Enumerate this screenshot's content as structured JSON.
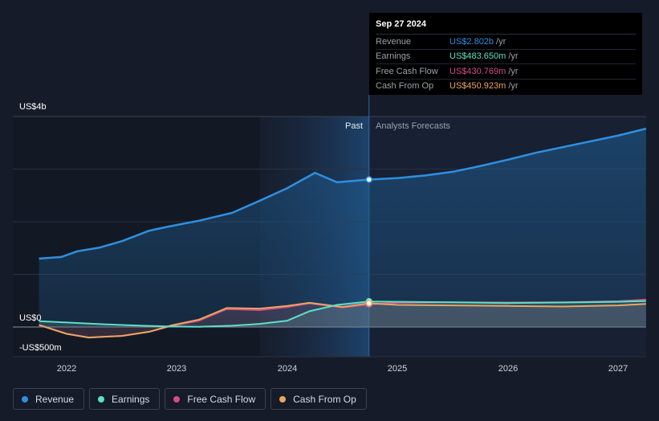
{
  "chart_data": {
    "type": "line",
    "title": "",
    "xlabel": "",
    "ylabel": "",
    "ylim": [
      -500,
      4000
    ],
    "y_ticks": [
      {
        "value": 4000,
        "label": "US$4b"
      },
      {
        "value": 0,
        "label": "US$0"
      },
      {
        "value": -500,
        "label": "-US$500m"
      }
    ],
    "x_ticks": [
      {
        "value": 2022,
        "label": "2022"
      },
      {
        "value": 2023,
        "label": "2023"
      },
      {
        "value": 2024,
        "label": "2024"
      },
      {
        "value": 2025,
        "label": "2025"
      },
      {
        "value": 2026,
        "label": "2026"
      },
      {
        "value": 2027,
        "label": "2027"
      }
    ],
    "xlim": [
      2021.55,
      2027.25
    ],
    "past_start": 2023.75,
    "divider": 2024.74,
    "past_label": "Past",
    "forecast_label": "Analysts Forecasts",
    "series": [
      {
        "name": "Revenue",
        "color": "#2f8fe0",
        "points": [
          [
            2021.75,
            1300
          ],
          [
            2021.95,
            1330
          ],
          [
            2022.1,
            1440
          ],
          [
            2022.3,
            1510
          ],
          [
            2022.5,
            1630
          ],
          [
            2022.75,
            1830
          ],
          [
            2022.9,
            1900
          ],
          [
            2023.2,
            2020
          ],
          [
            2023.5,
            2170
          ],
          [
            2023.75,
            2400
          ],
          [
            2024.0,
            2640
          ],
          [
            2024.25,
            2930
          ],
          [
            2024.45,
            2750
          ],
          [
            2024.74,
            2802
          ],
          [
            2025.0,
            2830
          ],
          [
            2025.25,
            2880
          ],
          [
            2025.5,
            2950
          ],
          [
            2025.75,
            3060
          ],
          [
            2026.0,
            3180
          ],
          [
            2026.25,
            3310
          ],
          [
            2026.5,
            3420
          ],
          [
            2026.75,
            3530
          ],
          [
            2027.0,
            3640
          ],
          [
            2027.25,
            3770
          ]
        ]
      },
      {
        "name": "Earnings",
        "color": "#5ce0c6",
        "points": [
          [
            2021.75,
            110
          ],
          [
            2022.0,
            85
          ],
          [
            2022.3,
            55
          ],
          [
            2022.6,
            30
          ],
          [
            2022.9,
            10
          ],
          [
            2023.2,
            5
          ],
          [
            2023.5,
            25
          ],
          [
            2023.75,
            60
          ],
          [
            2024.0,
            120
          ],
          [
            2024.2,
            300
          ],
          [
            2024.45,
            420
          ],
          [
            2024.74,
            484
          ],
          [
            2025.0,
            480
          ],
          [
            2025.5,
            470
          ],
          [
            2026.0,
            455
          ],
          [
            2026.5,
            465
          ],
          [
            2027.0,
            480
          ],
          [
            2027.25,
            495
          ]
        ]
      },
      {
        "name": "Free Cash Flow",
        "color": "#d14d89",
        "points": [
          [
            2021.75,
            40
          ],
          [
            2022.0,
            -130
          ],
          [
            2022.2,
            -200
          ],
          [
            2022.5,
            -170
          ],
          [
            2022.75,
            -90
          ],
          [
            2022.95,
            20
          ],
          [
            2023.2,
            120
          ],
          [
            2023.45,
            340
          ],
          [
            2023.75,
            320
          ],
          [
            2024.0,
            380
          ],
          [
            2024.2,
            450
          ],
          [
            2024.5,
            370
          ],
          [
            2024.74,
            431
          ],
          [
            2025.0,
            460
          ],
          [
            2025.5,
            470
          ],
          [
            2026.0,
            465
          ],
          [
            2026.5,
            470
          ],
          [
            2027.0,
            490
          ],
          [
            2027.25,
            520
          ]
        ]
      },
      {
        "name": "Cash From Op",
        "color": "#e8a562",
        "points": [
          [
            2021.75,
            40
          ],
          [
            2022.0,
            -130
          ],
          [
            2022.2,
            -200
          ],
          [
            2022.5,
            -170
          ],
          [
            2022.75,
            -90
          ],
          [
            2022.95,
            30
          ],
          [
            2023.2,
            140
          ],
          [
            2023.45,
            360
          ],
          [
            2023.75,
            350
          ],
          [
            2024.0,
            400
          ],
          [
            2024.2,
            460
          ],
          [
            2024.5,
            380
          ],
          [
            2024.74,
            451
          ],
          [
            2025.0,
            420
          ],
          [
            2025.5,
            410
          ],
          [
            2026.0,
            400
          ],
          [
            2026.5,
            390
          ],
          [
            2027.0,
            410
          ],
          [
            2027.25,
            440
          ]
        ]
      }
    ]
  },
  "tooltip": {
    "date": "Sep 27 2024",
    "rows": [
      {
        "label": "Revenue",
        "value": "US$2.802b",
        "unit": "/yr",
        "color": "#2f8fe0"
      },
      {
        "label": "Earnings",
        "value": "US$483.650m",
        "unit": "/yr",
        "color": "#5ce0c6"
      },
      {
        "label": "Free Cash Flow",
        "value": "US$430.769m",
        "unit": "/yr",
        "color": "#d14d89"
      },
      {
        "label": "Cash From Op",
        "value": "US$450.923m",
        "unit": "/yr",
        "color": "#e8a562"
      }
    ]
  },
  "legend": [
    {
      "label": "Revenue",
      "color": "#2f8fe0"
    },
    {
      "label": "Earnings",
      "color": "#5ce0c6"
    },
    {
      "label": "Free Cash Flow",
      "color": "#d14d89"
    },
    {
      "label": "Cash From Op",
      "color": "#e8a562"
    }
  ]
}
